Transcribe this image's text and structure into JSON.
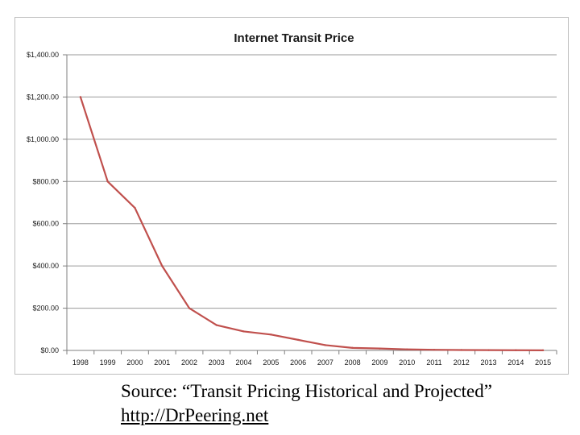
{
  "chart_data": {
    "type": "line",
    "title": "Internet Transit Price",
    "xlabel": "",
    "ylabel": "",
    "categories": [
      "1998",
      "1999",
      "2000",
      "2001",
      "2002",
      "2003",
      "2004",
      "2005",
      "2006",
      "2007",
      "2008",
      "2009",
      "2010",
      "2011",
      "2012",
      "2013",
      "2014",
      "2015"
    ],
    "series": [
      {
        "name": "Internet Transit Price",
        "color": "#c0504d",
        "values": [
          1200,
          800,
          675,
          400,
          200,
          120,
          90,
          75,
          50,
          25,
          12,
          9,
          5,
          3,
          2,
          1.5,
          1,
          0.6
        ]
      }
    ],
    "ylim": [
      0,
      1400
    ],
    "y_ticks": [
      0,
      200,
      400,
      600,
      800,
      1000,
      1200,
      1400
    ],
    "y_tick_labels": [
      "$0.00",
      "$200.00",
      "$400.00",
      "$600.00",
      "$800.00",
      "$1,000.00",
      "$1,200.00",
      "$1,400.00"
    ],
    "grid": true,
    "legend": "none"
  },
  "source": {
    "text": "Source:  “Transit Pricing Historical and Projected”",
    "url": "http://DrPeering.net"
  },
  "colors": {
    "line": "#c0504d",
    "grid": "#9a9a9a",
    "axis": "#7f7f7f"
  }
}
